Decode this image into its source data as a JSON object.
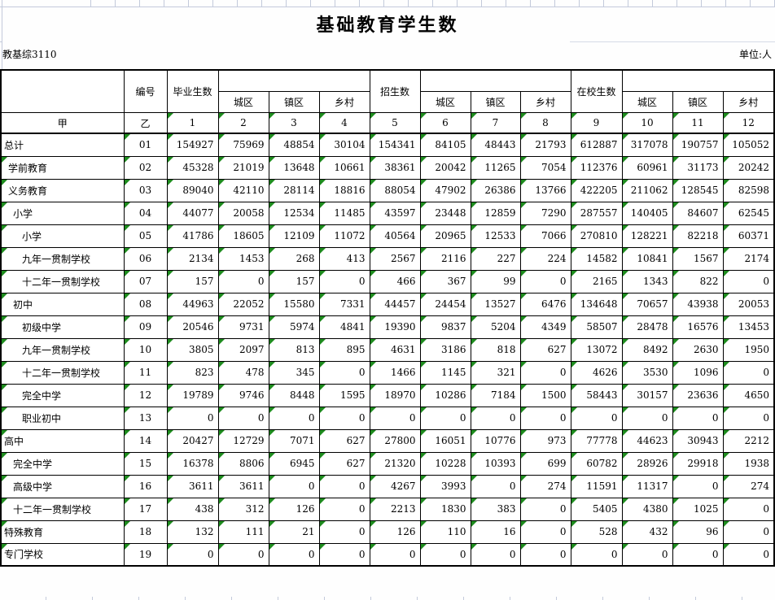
{
  "window": {
    "title": "基础教育学生数",
    "form_code": "教基综3110",
    "unit_label": "单位:人"
  },
  "colors": {
    "triangle_green": "#1e8c1e",
    "gridline_blue": "#c3cadb",
    "cell_border": "#000000"
  },
  "table": {
    "code_header": "编号",
    "header_letters": {
      "name_col": "甲",
      "code_col": "乙"
    },
    "col_numbers": [
      "1",
      "2",
      "3",
      "4",
      "5",
      "6",
      "7",
      "8",
      "9",
      "10",
      "11",
      "12"
    ],
    "groups": [
      {
        "label": "毕业生数",
        "subs": [
          "城区",
          "镇区",
          "乡村"
        ]
      },
      {
        "label": "招生数",
        "subs": [
          "城区",
          "镇区",
          "乡村"
        ]
      },
      {
        "label": "在校生数",
        "subs": [
          "城区",
          "镇区",
          "乡村"
        ]
      }
    ],
    "rows": [
      {
        "label": "总计",
        "indent": 0,
        "code": "01",
        "label_triangle": false,
        "values": [
          154927,
          75969,
          48854,
          30104,
          154341,
          84105,
          48443,
          21793,
          612887,
          317078,
          190757,
          105052
        ]
      },
      {
        "label": "学前教育",
        "indent": 1,
        "code": "02",
        "label_triangle": true,
        "values": [
          45328,
          21019,
          13648,
          10661,
          38361,
          20042,
          11265,
          7054,
          112376,
          60961,
          31173,
          20242
        ]
      },
      {
        "label": "义务教育",
        "indent": 1,
        "code": "03",
        "label_triangle": true,
        "values": [
          89040,
          42110,
          28114,
          18816,
          88054,
          47902,
          26386,
          13766,
          422205,
          211062,
          128545,
          82598
        ]
      },
      {
        "label": "小学",
        "indent": 2,
        "code": "04",
        "label_triangle": true,
        "values": [
          44077,
          20058,
          12534,
          11485,
          43597,
          23448,
          12859,
          7290,
          287557,
          140405,
          84607,
          62545
        ]
      },
      {
        "label": "小学",
        "indent": 3,
        "code": "05",
        "label_triangle": true,
        "values": [
          41786,
          18605,
          12109,
          11072,
          40564,
          20965,
          12533,
          7066,
          270810,
          128221,
          82218,
          60371
        ]
      },
      {
        "label": "九年一贯制学校",
        "indent": 3,
        "code": "06",
        "label_triangle": true,
        "values": [
          2134,
          1453,
          268,
          413,
          2567,
          2116,
          227,
          224,
          14582,
          10841,
          1567,
          2174
        ]
      },
      {
        "label": "十二年一贯制学校",
        "indent": 3,
        "code": "07",
        "label_triangle": true,
        "values": [
          157,
          0,
          157,
          0,
          466,
          367,
          99,
          0,
          2165,
          1343,
          822,
          0
        ]
      },
      {
        "label": "初中",
        "indent": 2,
        "code": "08",
        "label_triangle": true,
        "values": [
          44963,
          22052,
          15580,
          7331,
          44457,
          24454,
          13527,
          6476,
          134648,
          70657,
          43938,
          20053
        ]
      },
      {
        "label": "初级中学",
        "indent": 3,
        "code": "09",
        "label_triangle": true,
        "values": [
          20546,
          9731,
          5974,
          4841,
          19390,
          9837,
          5204,
          4349,
          58507,
          28478,
          16576,
          13453
        ]
      },
      {
        "label": "九年一贯制学校",
        "indent": 3,
        "code": "10",
        "label_triangle": true,
        "values": [
          3805,
          2097,
          813,
          895,
          4631,
          3186,
          818,
          627,
          13072,
          8492,
          2630,
          1950
        ]
      },
      {
        "label": "十二年一贯制学校",
        "indent": 3,
        "code": "11",
        "label_triangle": true,
        "values": [
          823,
          478,
          345,
          0,
          1466,
          1145,
          321,
          0,
          4626,
          3530,
          1096,
          0
        ]
      },
      {
        "label": "完全中学",
        "indent": 3,
        "code": "12",
        "label_triangle": true,
        "values": [
          19789,
          9746,
          8448,
          1595,
          18970,
          10286,
          7184,
          1500,
          58443,
          30157,
          23636,
          4650
        ]
      },
      {
        "label": "职业初中",
        "indent": 3,
        "code": "13",
        "label_triangle": true,
        "values": [
          0,
          0,
          0,
          0,
          0,
          0,
          0,
          0,
          0,
          0,
          0,
          0
        ]
      },
      {
        "label": "高中",
        "indent": 0,
        "code": "14",
        "label_triangle": true,
        "values": [
          20427,
          12729,
          7071,
          627,
          27800,
          16051,
          10776,
          973,
          77778,
          44623,
          30943,
          2212
        ]
      },
      {
        "label": "完全中学",
        "indent": 2,
        "code": "15",
        "label_triangle": true,
        "values": [
          16378,
          8806,
          6945,
          627,
          21320,
          10228,
          10393,
          699,
          60782,
          28926,
          29918,
          1938
        ]
      },
      {
        "label": "高级中学",
        "indent": 2,
        "code": "16",
        "label_triangle": true,
        "values": [
          3611,
          3611,
          0,
          0,
          4267,
          3993,
          0,
          274,
          11591,
          11317,
          0,
          274
        ]
      },
      {
        "label": "十二年一贯制学校",
        "indent": 2,
        "code": "17",
        "label_triangle": true,
        "values": [
          438,
          312,
          126,
          0,
          2213,
          1830,
          383,
          0,
          5405,
          4380,
          1025,
          0
        ]
      },
      {
        "label": "特殊教育",
        "indent": 0,
        "code": "18",
        "label_triangle": true,
        "values": [
          132,
          111,
          21,
          0,
          126,
          110,
          16,
          0,
          528,
          432,
          96,
          0
        ]
      },
      {
        "label": "专门学校",
        "indent": 0,
        "code": "19",
        "label_triangle": true,
        "values": [
          0,
          0,
          0,
          0,
          0,
          0,
          0,
          0,
          0,
          0,
          0,
          0
        ]
      }
    ]
  }
}
